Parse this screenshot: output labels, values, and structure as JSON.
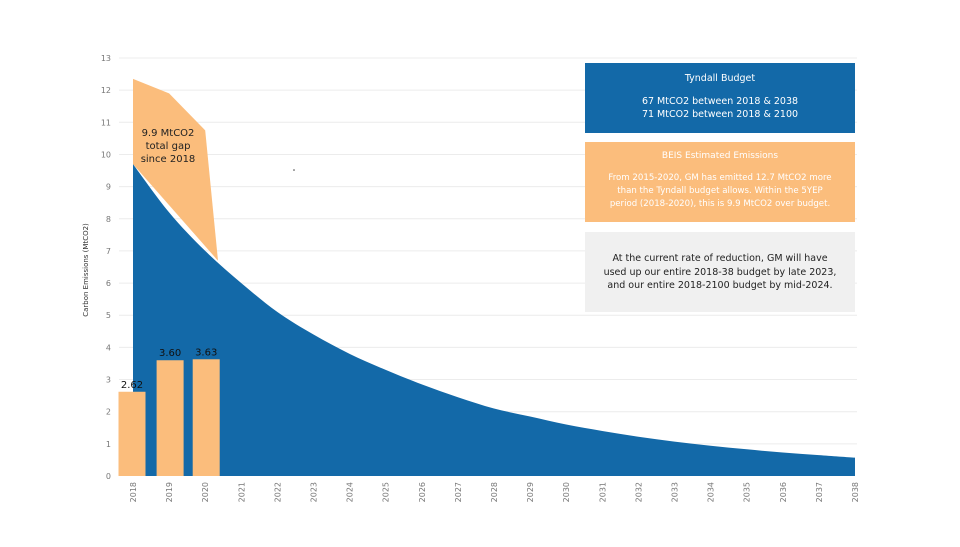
{
  "colors": {
    "budget_blue": "#1369a8",
    "beis_orange": "#fbbd7c",
    "info_grey": "#f0f0f0",
    "grid": "#ececec"
  },
  "chart_data": {
    "type": "area",
    "ylabel": "Carbon Emissions (MtCO2)",
    "ylim": [
      0,
      13
    ],
    "yticks": [
      0,
      1,
      2,
      3,
      4,
      5,
      6,
      7,
      8,
      9,
      10,
      11,
      12,
      13
    ],
    "grid": true,
    "x_categories": [
      "2018",
      "2019",
      "2020",
      "2021",
      "2022",
      "2023",
      "2024",
      "2025",
      "2026",
      "2027",
      "2028",
      "2029",
      "2030",
      "2031",
      "2032",
      "2033",
      "2034",
      "2035",
      "2036",
      "2037",
      "2038"
    ],
    "series": [
      {
        "type": "area",
        "color": "#1369a8",
        "x": [
          2018,
          2019,
          2020,
          2021,
          2022,
          2023,
          2024,
          2025,
          2026,
          2027,
          2028,
          2029,
          2030,
          2031,
          2032,
          2033,
          2034,
          2035,
          2036,
          2037,
          2038
        ],
        "values": [
          9.7,
          8.2,
          7.0,
          6.0,
          5.1,
          4.4,
          3.8,
          3.3,
          2.85,
          2.45,
          2.1,
          1.85,
          1.6,
          1.4,
          1.22,
          1.07,
          0.94,
          0.83,
          0.73,
          0.65,
          0.57
        ]
      },
      {
        "type": "area",
        "color": "#fbbd7c",
        "x": [
          2018,
          2019,
          2020,
          2020.35
        ],
        "values": [
          12.35,
          11.9,
          10.75,
          6.75
        ]
      },
      {
        "type": "bar",
        "color": "#fbbd7c",
        "categories": [
          "2018",
          "2019",
          "2020"
        ],
        "values": [
          2.62,
          3.6,
          3.63
        ],
        "labels": [
          "2.62",
          "3.60",
          "3.63"
        ]
      }
    ],
    "annotations": [
      {
        "text_lines": [
          "9.9 MtCO2",
          "total gap",
          "since 2018"
        ]
      }
    ]
  },
  "boxes": {
    "tyndall": {
      "title": "Tyndall Budget",
      "lines": [
        "67 MtCO2 between 2018 & 2038",
        "71 MtCO2 between 2018 & 2100"
      ]
    },
    "beis": {
      "title": "BEIS Estimated Emissions",
      "lines": [
        "From 2015-2020, GM has emitted 12.7 MtCO2 more",
        "than the Tyndall budget allows. Within the 5YEP",
        "period (2018-2020), this is 9.9 MtCO2 over budget."
      ]
    },
    "rate": {
      "lines": [
        "At the current rate of reduction, GM will have",
        "used up our entire 2018-38 budget by late 2023,",
        "and our entire 2018-2100 budget by mid-2024."
      ]
    }
  }
}
